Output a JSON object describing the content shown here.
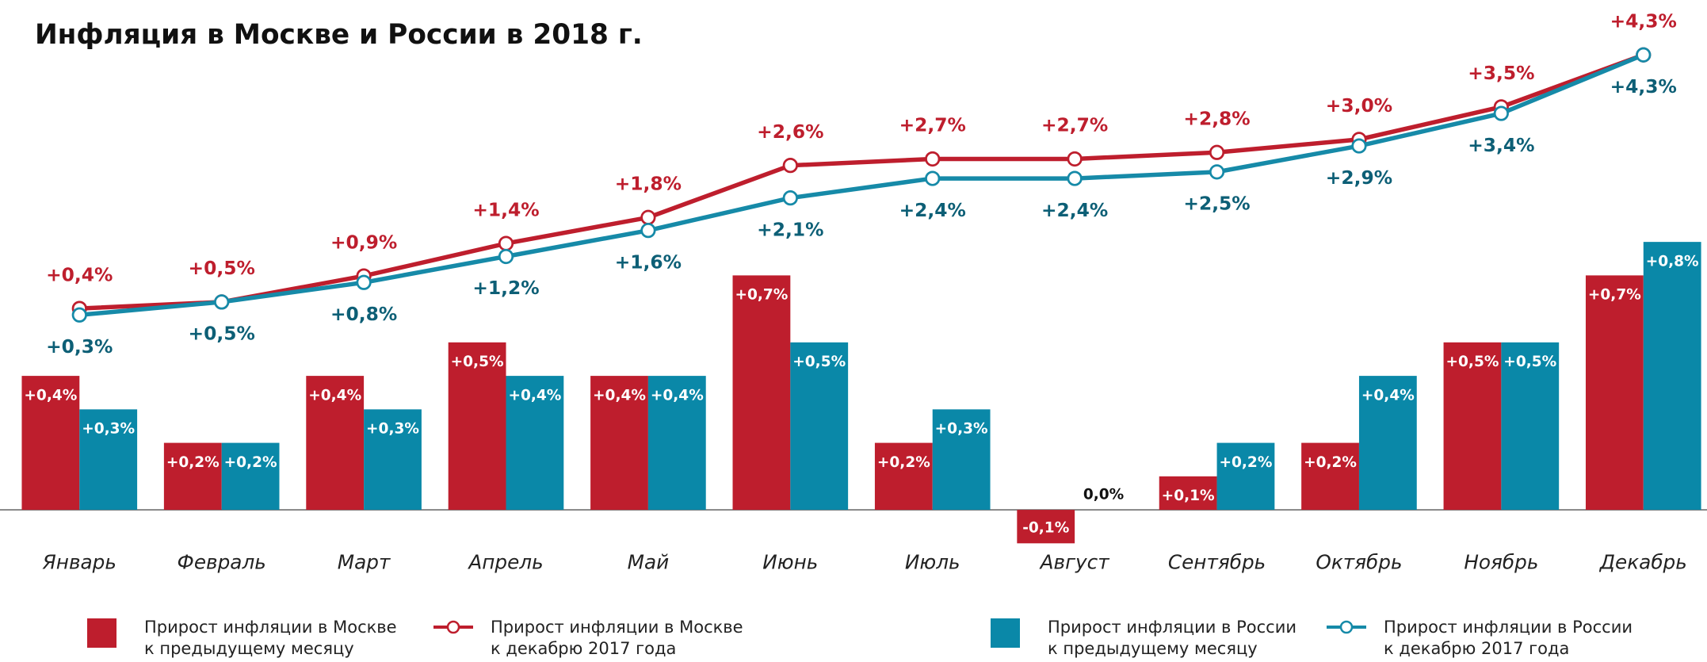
{
  "chart_data": {
    "type": "bar",
    "title": "Инфляция в Москве и России в 2018 г.",
    "categories": [
      "Январь",
      "Февраль",
      "Март",
      "Апрель",
      "Май",
      "Июнь",
      "Июль",
      "Август",
      "Сентябрь",
      "Октябрь",
      "Ноябрь",
      "Декабрь"
    ],
    "ylim": [
      -0.2,
      1.0
    ],
    "y2lim": [
      0,
      5
    ],
    "series": [
      {
        "name": "Прирост инфляции в Москве к предыдущему месяцу",
        "type": "bar",
        "color": "#be1e2d",
        "label_color": "#ffffff",
        "values": [
          0.4,
          0.2,
          0.4,
          0.5,
          0.4,
          0.7,
          0.2,
          -0.1,
          0.1,
          0.2,
          0.5,
          0.7
        ],
        "value_labels": [
          "+0,4%",
          "+0,2%",
          "+0,4%",
          "+0,5%",
          "+0,4%",
          "+0,7%",
          "+0,2%",
          "-0,1%",
          "+0,1%",
          "+0,2%",
          "+0,5%",
          "+0,7%"
        ]
      },
      {
        "name": "Прирост инфляции в Москве к декабрю 2017 года",
        "type": "line",
        "axis": "y2",
        "color": "#be1e2d",
        "label_color": "#be1e2d",
        "label_side": "above",
        "values": [
          0.4,
          0.5,
          0.9,
          1.4,
          1.8,
          2.6,
          2.7,
          2.7,
          2.8,
          3.0,
          3.5,
          4.3
        ],
        "value_labels": [
          "+0,4%",
          "+0,5%",
          "+0,9%",
          "+1,4%",
          "+1,8%",
          "+2,6%",
          "+2,7%",
          "+2,7%",
          "+2,8%",
          "+3,0%",
          "+3,5%",
          "+4,3%"
        ]
      },
      {
        "name": "Прирост инфляции в России к предыдущему месяцу",
        "type": "bar",
        "color": "#0a88a8",
        "label_color": "#ffffff",
        "values": [
          0.3,
          0.2,
          0.3,
          0.4,
          0.4,
          0.5,
          0.3,
          0.0,
          0.2,
          0.4,
          0.5,
          0.8
        ],
        "value_labels": [
          "+0,3%",
          "+0,2%",
          "+0,3%",
          "+0,4%",
          "+0,4%",
          "+0,5%",
          "+0,3%",
          "0,0%",
          "+0,2%",
          "+0,4%",
          "+0,5%",
          "+0,8%"
        ]
      },
      {
        "name": "Прирост инфляции в России к декабрю 2017 года",
        "type": "line",
        "axis": "y2",
        "color": "#168aa8",
        "label_color": "#0d5f76",
        "label_side": "below",
        "values": [
          0.3,
          0.5,
          0.8,
          1.2,
          1.6,
          2.1,
          2.4,
          2.4,
          2.5,
          2.9,
          3.4,
          4.3
        ],
        "value_labels": [
          "+0,3%",
          "+0,5%",
          "+0,8%",
          "+1,2%",
          "+1,6%",
          "+2,1%",
          "+2,4%",
          "+2,4%",
          "+2,5%",
          "+2,9%",
          "+3,4%",
          "+4,3%"
        ]
      }
    ]
  }
}
